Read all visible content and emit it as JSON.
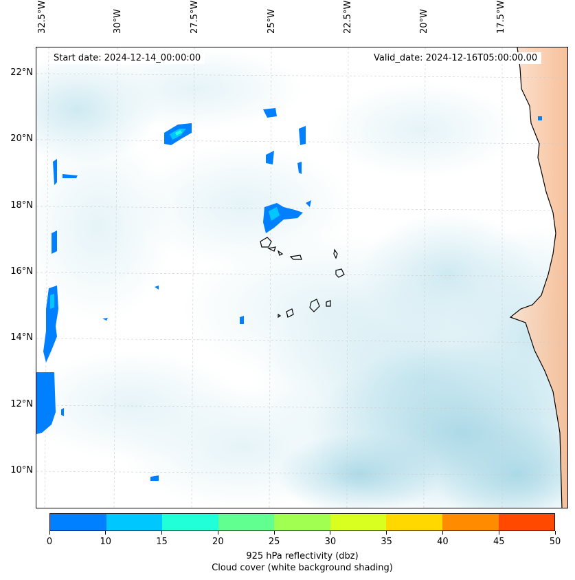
{
  "map": {
    "start_date": "Start date: 2024-12-14_00:00:00",
    "valid_date": "Valid_date: 2024-12-16T05:00:00.00",
    "lon_labels": [
      "32.5°W",
      "30°W",
      "27.5°W",
      "25°W",
      "22.5°W",
      "20°W",
      "17.5°W"
    ],
    "lat_labels": [
      "22°N",
      "20°N",
      "18°N",
      "16°N",
      "14°N",
      "12°N",
      "10°N"
    ]
  },
  "colorbar": {
    "ticks": [
      "0",
      "10",
      "15",
      "20",
      "25",
      "30",
      "35",
      "40",
      "45",
      "50"
    ],
    "colors": [
      "#0080ff",
      "#00c8ff",
      "#20ffd8",
      "#60ff90",
      "#a0ff50",
      "#d8ff20",
      "#ffd800",
      "#ff8c00",
      "#ff4800"
    ],
    "title_line1": "925 hPa reflectivity (dbz)",
    "title_line2": "Cloud cover (white background shading)"
  }
}
